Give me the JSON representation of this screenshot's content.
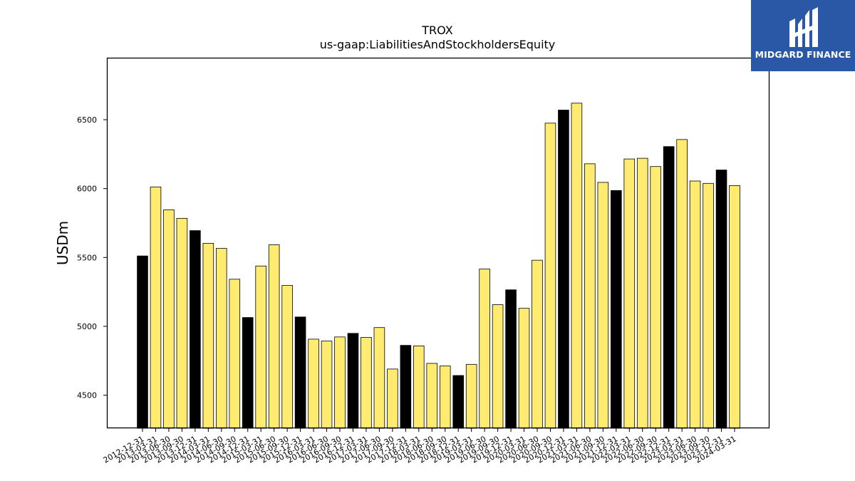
{
  "brand": {
    "name": "MIDGARD FINANCE",
    "bg_color": "#2a58a6"
  },
  "chart_data": {
    "type": "bar",
    "title": "TROX",
    "subtitle": "us-gaap:LiabilitiesAndStockholdersEquity",
    "xlabel": "",
    "ylabel": "USDm",
    "ylim": [
      4260,
      6950
    ],
    "yticks": [
      4500,
      5000,
      5500,
      6000,
      6500
    ],
    "grid": false,
    "colors": {
      "annual": "#000000",
      "quarterly": "#ffeb70",
      "edge": "#000000"
    },
    "categories": [
      "2012-12-31",
      "2013-03-31",
      "2013-06-30",
      "2013-09-30",
      "2013-12-31",
      "2014-03-31",
      "2014-06-30",
      "2014-09-30",
      "2014-12-31",
      "2015-03-31",
      "2015-06-30",
      "2015-09-30",
      "2015-12-31",
      "2016-03-31",
      "2016-06-30",
      "2016-09-30",
      "2016-12-31",
      "2017-03-31",
      "2017-06-30",
      "2017-09-30",
      "2017-12-31",
      "2018-03-31",
      "2018-06-30",
      "2018-09-30",
      "2018-12-31",
      "2019-03-31",
      "2019-06-30",
      "2019-09-30",
      "2019-12-31",
      "2020-03-31",
      "2020-06-30",
      "2020-09-30",
      "2020-12-31",
      "2021-03-31",
      "2021-06-30",
      "2021-09-30",
      "2021-12-31",
      "2022-03-31",
      "2022-06-30",
      "2022-09-30",
      "2022-12-31",
      "2023-03-31",
      "2023-06-30",
      "2023-09-30",
      "2023-12-31",
      "2024-03-31"
    ],
    "values": [
      5511,
      6012,
      5846,
      5784,
      5695,
      5603,
      5566,
      5342,
      5064,
      5438,
      5592,
      5297,
      5068,
      4907,
      4893,
      4923,
      4949,
      4920,
      4991,
      4690,
      4862,
      4858,
      4731,
      4712,
      4643,
      4724,
      5416,
      5157,
      5265,
      5131,
      5480,
      6475,
      6570,
      6620,
      6180,
      6045,
      5986,
      6215,
      6220,
      6160,
      6305,
      6356,
      6055,
      6038,
      6135,
      6022
    ],
    "annual": [
      true,
      false,
      false,
      false,
      true,
      false,
      false,
      false,
      true,
      false,
      false,
      false,
      true,
      false,
      false,
      false,
      true,
      false,
      false,
      false,
      true,
      false,
      false,
      false,
      true,
      false,
      false,
      false,
      true,
      false,
      false,
      false,
      true,
      false,
      false,
      false,
      true,
      false,
      false,
      false,
      true,
      false,
      false,
      false,
      true,
      false
    ]
  }
}
